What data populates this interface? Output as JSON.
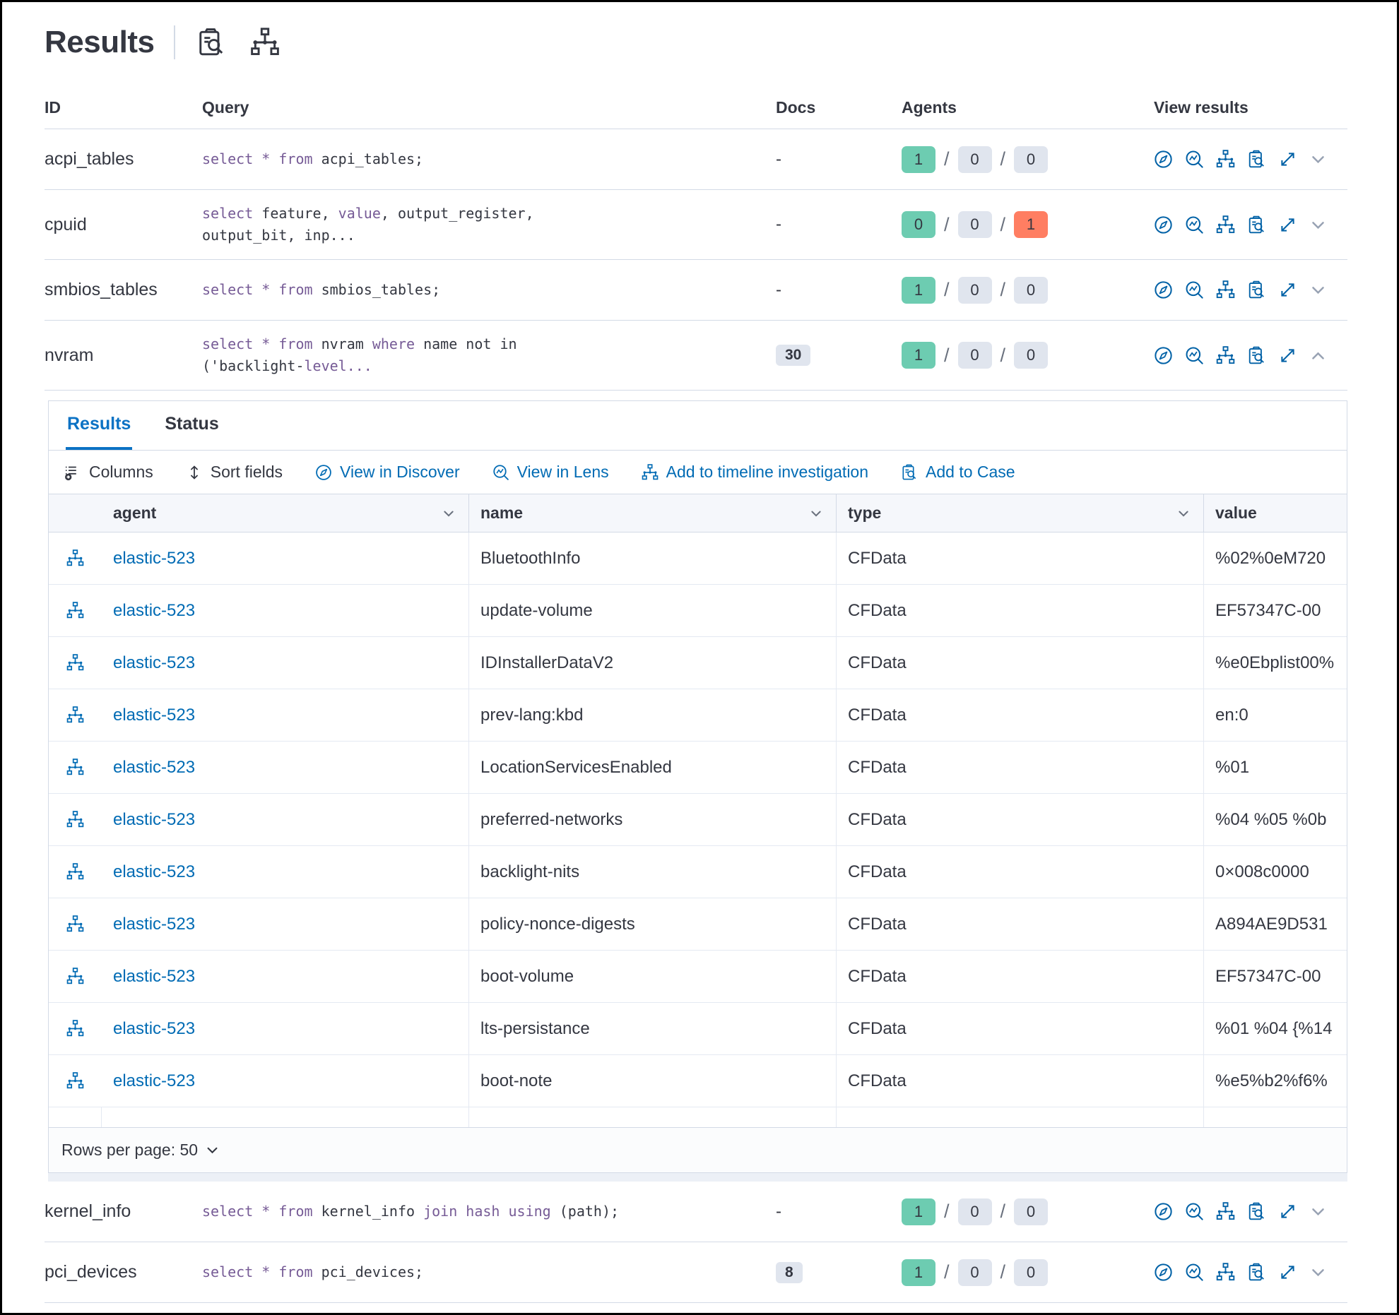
{
  "page": {
    "title": "Results"
  },
  "colors": {
    "badge_green": "#6DCCB1",
    "badge_gray": "#E0E5EE",
    "badge_red": "#FF7E62",
    "link_blue": "#006BB4",
    "tab_blue": "#0B72C4",
    "keyword_purple": "#765B96",
    "text_dark": "#343741"
  },
  "header_icons": [
    "inspect-clipboard-search",
    "timeline-node-tree"
  ],
  "queries_table": {
    "columns": {
      "id": "ID",
      "query": "Query",
      "docs": "Docs",
      "agents": "Agents",
      "view": "View results"
    },
    "view_action_icons": [
      "discover-compass",
      "lens",
      "timeline-node-tree",
      "case-clipboard-search",
      "fullscreen-expand",
      "row-expand-chevron"
    ],
    "rows": [
      {
        "id": "acpi_tables",
        "section": "top",
        "expanded": false,
        "docs": "-",
        "docs_badge": null,
        "query_lines": [
          [
            {
              "t": "select * from",
              "k": true
            },
            {
              "t": " acpi_tables;",
              "k": false
            }
          ]
        ],
        "agents": [
          {
            "n": "1",
            "c": "green"
          },
          {
            "n": "0",
            "c": "gray"
          },
          {
            "n": "0",
            "c": "gray"
          }
        ]
      },
      {
        "id": "cpuid",
        "section": "top",
        "expanded": false,
        "docs": "-",
        "docs_badge": null,
        "query_lines": [
          [
            {
              "t": "select",
              "k": true
            },
            {
              "t": " feature, ",
              "k": false
            },
            {
              "t": "value",
              "k": true
            },
            {
              "t": ", output_register,",
              "k": false
            }
          ],
          [
            {
              "t": "output_bit, inp...",
              "k": false
            }
          ]
        ],
        "agents": [
          {
            "n": "0",
            "c": "green"
          },
          {
            "n": "0",
            "c": "gray"
          },
          {
            "n": "1",
            "c": "red"
          }
        ]
      },
      {
        "id": "smbios_tables",
        "section": "top",
        "expanded": false,
        "docs": "-",
        "docs_badge": null,
        "query_lines": [
          [
            {
              "t": "select * from",
              "k": true
            },
            {
              "t": " smbios_tables;",
              "k": false
            }
          ]
        ],
        "agents": [
          {
            "n": "1",
            "c": "green"
          },
          {
            "n": "0",
            "c": "gray"
          },
          {
            "n": "0",
            "c": "gray"
          }
        ]
      },
      {
        "id": "nvram",
        "section": "top",
        "expanded": true,
        "docs": "30",
        "docs_badge": "30",
        "query_lines": [
          [
            {
              "t": "select * from",
              "k": true
            },
            {
              "t": " nvram ",
              "k": false
            },
            {
              "t": "where",
              "k": true
            },
            {
              "t": " name not in",
              "k": false
            }
          ],
          [
            {
              "t": "('backlight-",
              "k": false
            },
            {
              "t": "level...",
              "k": true
            }
          ]
        ],
        "agents": [
          {
            "n": "1",
            "c": "green"
          },
          {
            "n": "0",
            "c": "gray"
          },
          {
            "n": "0",
            "c": "gray"
          }
        ]
      },
      {
        "id": "kernel_info",
        "section": "bottom",
        "expanded": false,
        "docs": "-",
        "docs_badge": null,
        "query_lines": [
          [
            {
              "t": "select * from",
              "k": true
            },
            {
              "t": " kernel_info ",
              "k": false
            },
            {
              "t": "join hash using",
              "k": true
            },
            {
              "t": " (path);",
              "k": false
            }
          ]
        ],
        "agents": [
          {
            "n": "1",
            "c": "green"
          },
          {
            "n": "0",
            "c": "gray"
          },
          {
            "n": "0",
            "c": "gray"
          }
        ]
      },
      {
        "id": "pci_devices",
        "section": "bottom",
        "expanded": false,
        "docs": "8",
        "docs_badge": "8",
        "query_lines": [
          [
            {
              "t": "select * from",
              "k": true
            },
            {
              "t": " pci_devices;",
              "k": false
            }
          ]
        ],
        "agents": [
          {
            "n": "1",
            "c": "green"
          },
          {
            "n": "0",
            "c": "gray"
          },
          {
            "n": "0",
            "c": "gray"
          }
        ]
      }
    ]
  },
  "panel": {
    "tabs": [
      {
        "label": "Results",
        "active": true
      },
      {
        "label": "Status",
        "active": false
      }
    ],
    "toolbar": [
      {
        "label": "Columns",
        "icon": "columns-list-add",
        "style": "dark"
      },
      {
        "label": "Sort fields",
        "icon": "sort-arrows",
        "style": "dark"
      },
      {
        "label": "View in Discover",
        "icon": "discover-compass",
        "style": "blue"
      },
      {
        "label": "View in Lens",
        "icon": "lens",
        "style": "blue"
      },
      {
        "label": "Add to timeline investigation",
        "icon": "timeline-node-tree",
        "style": "blue"
      },
      {
        "label": "Add to Case",
        "icon": "case-clipboard-search",
        "style": "blue"
      }
    ],
    "grid": {
      "columns": [
        "agent",
        "name",
        "type",
        "value"
      ],
      "row_icon": "timeline-node-tree",
      "rows": [
        {
          "agent": "elastic-523",
          "name": "BluetoothInfo",
          "type": "CFData",
          "value": "%02%0eM720"
        },
        {
          "agent": "elastic-523",
          "name": "update-volume",
          "type": "CFData",
          "value": "EF57347C-00"
        },
        {
          "agent": "elastic-523",
          "name": "IDInstallerDataV2",
          "type": "CFData",
          "value": "%e0Ebplist00%"
        },
        {
          "agent": "elastic-523",
          "name": "prev-lang:kbd",
          "type": "CFData",
          "value": "en:0"
        },
        {
          "agent": "elastic-523",
          "name": "LocationServicesEnabled",
          "type": "CFData",
          "value": "%01"
        },
        {
          "agent": "elastic-523",
          "name": "preferred-networks",
          "type": "CFData",
          "value": "%04 %05 %0b"
        },
        {
          "agent": "elastic-523",
          "name": "backlight-nits",
          "type": "CFData",
          "value": "0×008c0000"
        },
        {
          "agent": "elastic-523",
          "name": "policy-nonce-digests",
          "type": "CFData",
          "value": "A894AE9D531"
        },
        {
          "agent": "elastic-523",
          "name": "boot-volume",
          "type": "CFData",
          "value": "EF57347C-00"
        },
        {
          "agent": "elastic-523",
          "name": "lts-persistance",
          "type": "CFData",
          "value": "%01 %04 {%14"
        },
        {
          "agent": "elastic-523",
          "name": "boot-note",
          "type": "CFData",
          "value": "%e5%b2%f6%"
        }
      ]
    },
    "footer": {
      "rows_per_page_label": "Rows per page: 50"
    }
  }
}
